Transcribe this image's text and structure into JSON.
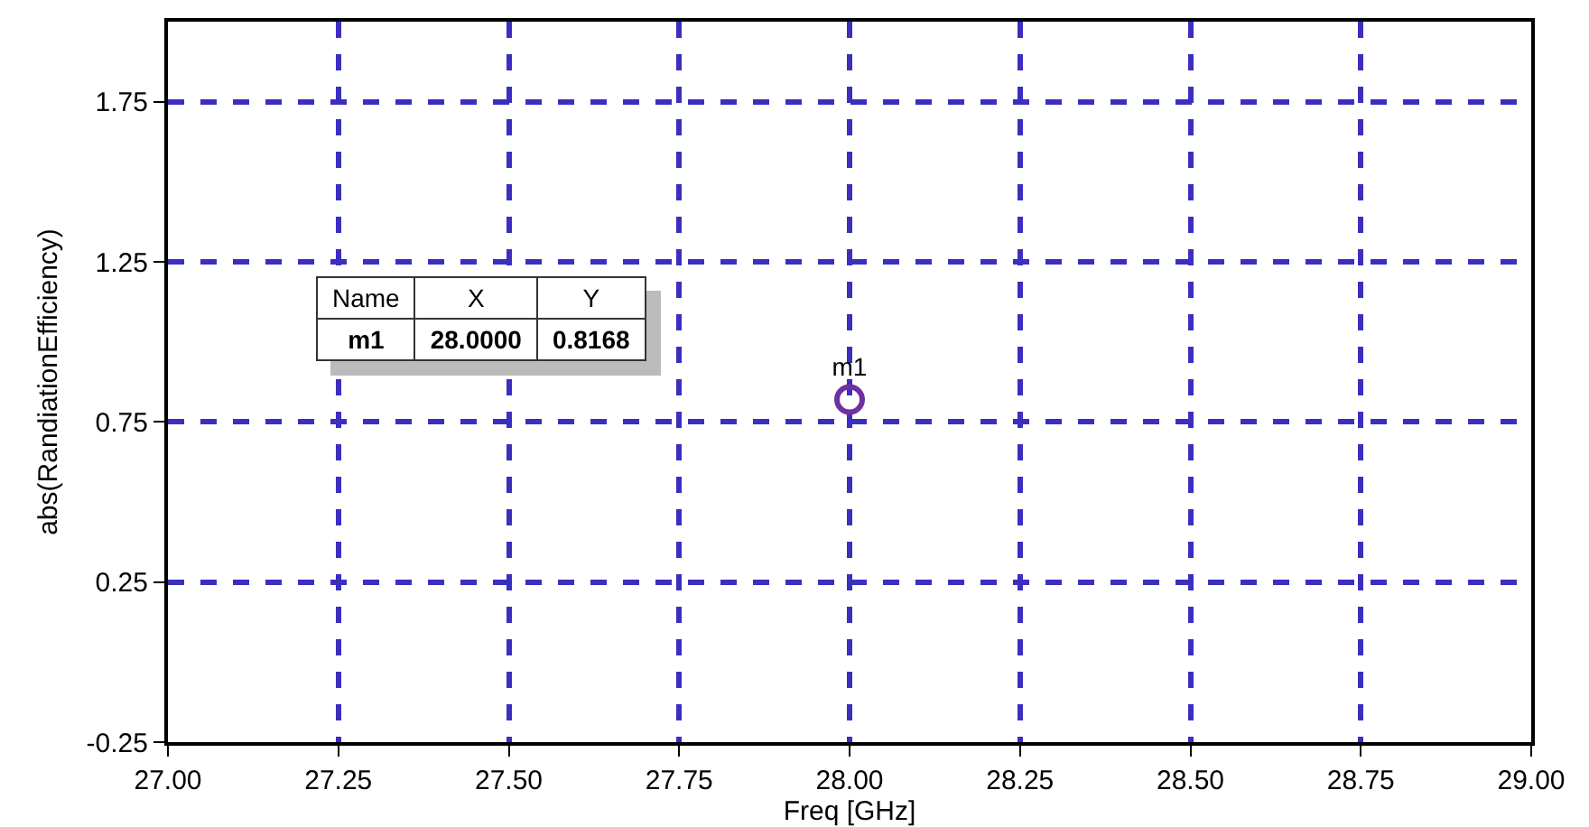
{
  "chart_data": {
    "type": "scatter",
    "xlabel": "Freq [GHz]",
    "ylabel": "abs(RandiationEfficiency)",
    "x": [
      28.0
    ],
    "series": [
      {
        "name": "m1",
        "color": "#7030a0",
        "values": [
          0.82
        ]
      }
    ],
    "annotations": [
      "Name",
      "X",
      "Y",
      "m1",
      "28.0000",
      "0.8168"
    ],
    "xlim": [
      27.0,
      29.0
    ],
    "xticks": [
      {
        "value": 27,
        "label": "27.00"
      },
      {
        "value": 27.25,
        "label": "27.25"
      },
      {
        "value": 27.5,
        "label": "27.50"
      },
      {
        "value": 27.75,
        "label": "27.75"
      },
      {
        "value": 28,
        "label": "28.00"
      },
      {
        "value": 28.25,
        "label": "28.25"
      },
      {
        "value": 28.5,
        "label": "28.50"
      },
      {
        "value": 28.75,
        "label": "28.75"
      },
      {
        "value": 29,
        "label": "29.00"
      }
    ],
    "ylim": [
      -0.25,
      2.0
    ],
    "yticks": [
      -0.25,
      0.25,
      0.75,
      1.25,
      1.75
    ],
    "grid": true,
    "marker": "circle",
    "legend": false
  }
}
